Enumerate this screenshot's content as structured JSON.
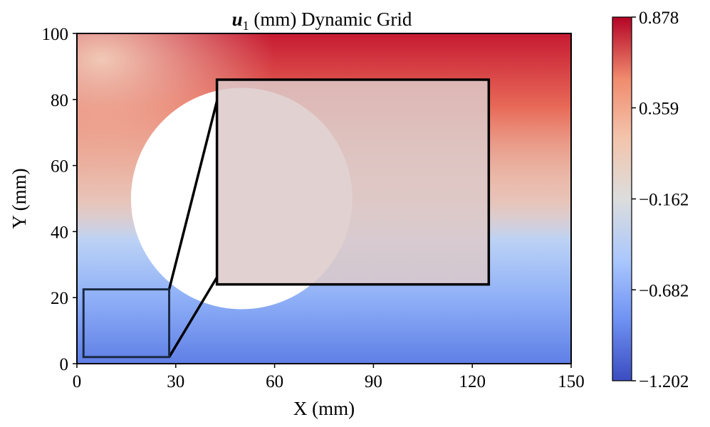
{
  "chart_data": {
    "type": "heatmap",
    "title_var": "u",
    "title_sub": "1",
    "title_rest": " (mm) Dynamic Grid",
    "xlabel": "X (mm)",
    "ylabel": "Y (mm)",
    "xlim": [
      0,
      150
    ],
    "ylim": [
      0,
      100
    ],
    "xticks": [
      0,
      30,
      60,
      90,
      120,
      150
    ],
    "yticks": [
      0,
      20,
      40,
      60,
      80,
      100
    ],
    "hole": {
      "cx": 50,
      "cy": 50,
      "r": 33.5
    },
    "zoom_source": {
      "x0": 2,
      "x1": 28,
      "y0": 2,
      "y1": 22.5
    },
    "zoom_inset": {
      "x0": 42.5,
      "x1": 125,
      "y0": 24,
      "y1": 86
    },
    "colorbar": {
      "min": -1.202,
      "max": 0.878,
      "ticks": [
        0.878,
        0.359,
        -0.162,
        -0.682,
        -1.202
      ],
      "tick_labels": [
        "0.878",
        "0.359",
        "−0.162",
        "−0.682",
        "−1.202"
      ],
      "colormap": "coolwarm",
      "colors": [
        "#3b4cc0",
        "#6f92f3",
        "#aac7fd",
        "#dcdddd",
        "#f3c4ab",
        "#f08b6e",
        "#b40426"
      ]
    }
  }
}
